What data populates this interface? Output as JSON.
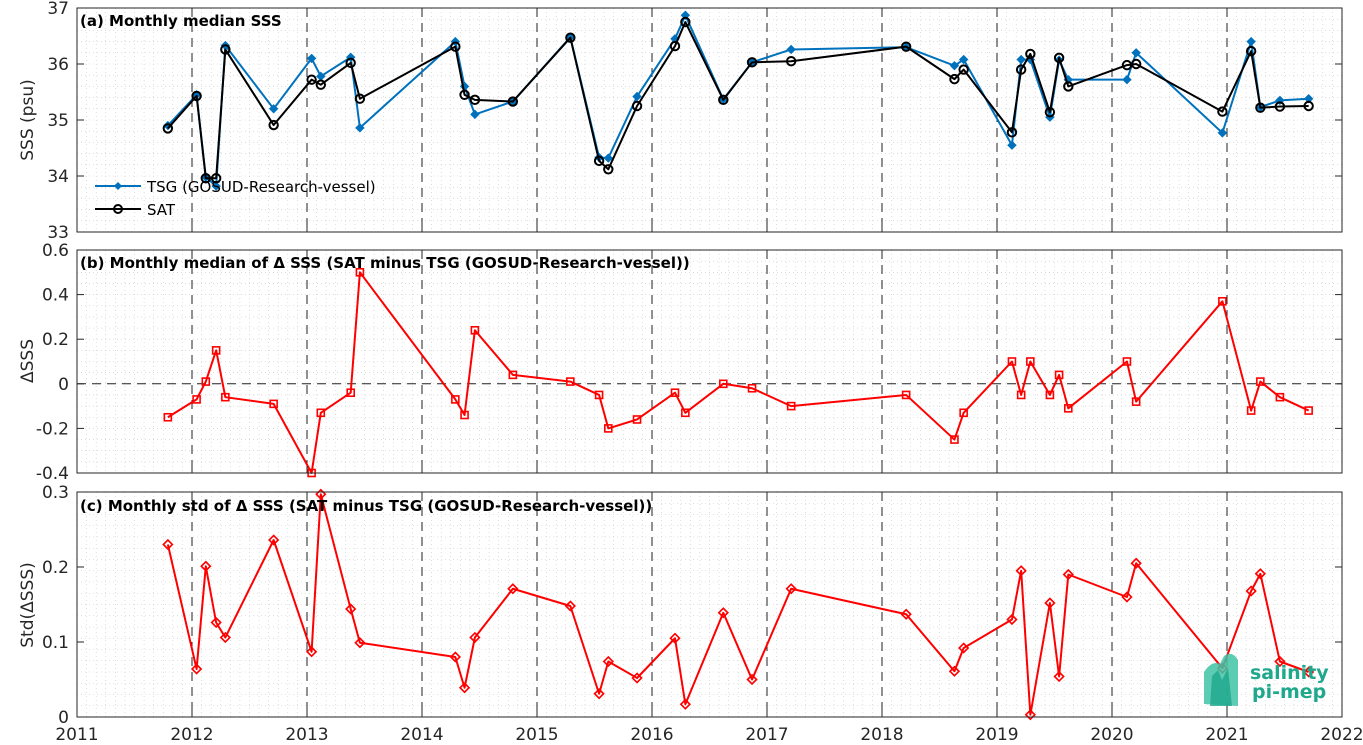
{
  "logo": {
    "line1": "salinity",
    "line2": "pi-mep",
    "colors": [
      "#1fa88c",
      "#3fc3a6",
      "#7fd9c0"
    ]
  },
  "xaxis": {
    "ticks": [
      "2011",
      "2012",
      "2013",
      "2014",
      "2015",
      "2016",
      "2017",
      "2018",
      "2019",
      "2020",
      "2021",
      "2022"
    ],
    "range": [
      2011,
      2022
    ],
    "grid": true
  },
  "chart_data": [
    {
      "type": "line",
      "title": "(a) Monthly median SSS",
      "ylabel": "SSS (psu)",
      "ylim": [
        33,
        37
      ],
      "yticks": [
        "33",
        "34",
        "35",
        "36",
        "37"
      ],
      "yticks_values": [
        33,
        34,
        35,
        36,
        37
      ],
      "legend": "bottom-left",
      "series": [
        {
          "name": "TSG (GOSUD-Research-vessel)",
          "color": "#0072bd",
          "marker": "diamond",
          "points": [
            [
              2011.79,
              34.9
            ],
            [
              2012.04,
              35.45
            ],
            [
              2012.12,
              33.98
            ],
            [
              2012.21,
              33.82
            ],
            [
              2012.29,
              36.33
            ],
            [
              2012.71,
              35.2
            ],
            [
              2013.04,
              36.1
            ],
            [
              2013.12,
              35.78
            ],
            [
              2013.38,
              36.12
            ],
            [
              2013.46,
              34.86
            ],
            [
              2014.29,
              36.4
            ],
            [
              2014.37,
              35.6
            ],
            [
              2014.46,
              35.1
            ],
            [
              2014.79,
              35.33
            ],
            [
              2015.29,
              36.48
            ],
            [
              2015.54,
              34.33
            ],
            [
              2015.62,
              34.32
            ],
            [
              2015.87,
              35.42
            ],
            [
              2016.2,
              36.45
            ],
            [
              2016.29,
              36.87
            ],
            [
              2016.62,
              35.37
            ],
            [
              2016.87,
              36.03
            ],
            [
              2017.21,
              36.26
            ],
            [
              2018.21,
              36.3
            ],
            [
              2018.63,
              35.97
            ],
            [
              2018.71,
              36.08
            ],
            [
              2019.13,
              34.55
            ],
            [
              2019.21,
              36.08
            ],
            [
              2019.29,
              36.08
            ],
            [
              2019.46,
              35.05
            ],
            [
              2019.54,
              36.07
            ],
            [
              2019.62,
              35.72
            ],
            [
              2020.13,
              35.72
            ],
            [
              2020.21,
              36.2
            ],
            [
              2020.96,
              34.77
            ],
            [
              2021.21,
              36.4
            ],
            [
              2021.29,
              35.23
            ],
            [
              2021.46,
              35.35
            ],
            [
              2021.71,
              35.38
            ]
          ]
        },
        {
          "name": "SAT",
          "color": "#000000",
          "marker": "circle",
          "points": [
            [
              2011.79,
              34.85
            ],
            [
              2012.04,
              35.43
            ],
            [
              2012.12,
              33.96
            ],
            [
              2012.21,
              33.96
            ],
            [
              2012.29,
              36.26
            ],
            [
              2012.71,
              34.91
            ],
            [
              2013.04,
              35.72
            ],
            [
              2013.12,
              35.63
            ],
            [
              2013.38,
              36.02
            ],
            [
              2013.46,
              35.38
            ],
            [
              2014.29,
              36.31
            ],
            [
              2014.37,
              35.45
            ],
            [
              2014.46,
              35.36
            ],
            [
              2014.79,
              35.33
            ],
            [
              2015.29,
              36.47
            ],
            [
              2015.54,
              34.27
            ],
            [
              2015.62,
              34.12
            ],
            [
              2015.87,
              35.25
            ],
            [
              2016.2,
              36.32
            ],
            [
              2016.29,
              36.75
            ],
            [
              2016.62,
              35.36
            ],
            [
              2016.87,
              36.03
            ],
            [
              2017.21,
              36.05
            ],
            [
              2018.21,
              36.31
            ],
            [
              2018.63,
              35.73
            ],
            [
              2018.71,
              35.9
            ],
            [
              2019.13,
              34.78
            ],
            [
              2019.21,
              35.9
            ],
            [
              2019.29,
              36.18
            ],
            [
              2019.46,
              35.14
            ],
            [
              2019.54,
              36.11
            ],
            [
              2019.62,
              35.6
            ],
            [
              2020.13,
              35.98
            ],
            [
              2020.21,
              36.0
            ],
            [
              2020.96,
              35.15
            ],
            [
              2021.21,
              36.23
            ],
            [
              2021.29,
              35.22
            ],
            [
              2021.46,
              35.24
            ],
            [
              2021.71,
              35.25
            ]
          ]
        }
      ]
    },
    {
      "type": "line",
      "title": "(b) Monthly median of Δ SSS (SAT minus TSG (GOSUD-Research-vessel))",
      "ylabel": "ΔSSS",
      "ylim": [
        -0.4,
        0.6
      ],
      "yticks": [
        "-0.4",
        "-0.2",
        "0",
        "0.2",
        "0.4",
        "0.6"
      ],
      "yticks_values": [
        -0.4,
        -0.2,
        0,
        0.2,
        0.4,
        0.6
      ],
      "zero_line": true,
      "series": [
        {
          "color": "#ff0000",
          "marker": "square",
          "points": [
            [
              2011.79,
              -0.15
            ],
            [
              2012.04,
              -0.07
            ],
            [
              2012.12,
              0.01
            ],
            [
              2012.21,
              0.15
            ],
            [
              2012.29,
              -0.06
            ],
            [
              2012.71,
              -0.09
            ],
            [
              2013.04,
              -0.4
            ],
            [
              2013.12,
              -0.13
            ],
            [
              2013.38,
              -0.04
            ],
            [
              2013.46,
              0.5
            ],
            [
              2014.29,
              -0.07
            ],
            [
              2014.37,
              -0.14
            ],
            [
              2014.46,
              0.24
            ],
            [
              2014.79,
              0.04
            ],
            [
              2015.29,
              0.01
            ],
            [
              2015.54,
              -0.05
            ],
            [
              2015.62,
              -0.2
            ],
            [
              2015.87,
              -0.16
            ],
            [
              2016.2,
              -0.04
            ],
            [
              2016.29,
              -0.13
            ],
            [
              2016.62,
              0.0
            ],
            [
              2016.87,
              -0.02
            ],
            [
              2017.21,
              -0.1
            ],
            [
              2018.21,
              -0.05
            ],
            [
              2018.63,
              -0.25
            ],
            [
              2018.71,
              -0.13
            ],
            [
              2019.13,
              0.1
            ],
            [
              2019.21,
              -0.05
            ],
            [
              2019.29,
              0.1
            ],
            [
              2019.46,
              -0.05
            ],
            [
              2019.54,
              0.04
            ],
            [
              2019.62,
              -0.11
            ],
            [
              2020.13,
              0.1
            ],
            [
              2020.21,
              -0.08
            ],
            [
              2020.96,
              0.37
            ],
            [
              2021.21,
              -0.12
            ],
            [
              2021.29,
              0.01
            ],
            [
              2021.46,
              -0.06
            ],
            [
              2021.71,
              -0.12
            ]
          ]
        }
      ]
    },
    {
      "type": "line",
      "title": "(c) Monthly std of Δ SSS (SAT minus TSG (GOSUD-Research-vessel))",
      "ylabel": "Std(ΔSSS)",
      "ylim": [
        0,
        0.3
      ],
      "yticks": [
        "0",
        "0.1",
        "0.2",
        "0.3"
      ],
      "yticks_values": [
        0,
        0.1,
        0.2,
        0.3
      ],
      "series": [
        {
          "color": "#ff0000",
          "marker": "diamond",
          "points": [
            [
              2011.79,
              0.23
            ],
            [
              2012.04,
              0.064
            ],
            [
              2012.12,
              0.201
            ],
            [
              2012.21,
              0.126
            ],
            [
              2012.29,
              0.106
            ],
            [
              2012.71,
              0.236
            ],
            [
              2013.04,
              0.087
            ],
            [
              2013.12,
              0.297
            ],
            [
              2013.38,
              0.144
            ],
            [
              2013.46,
              0.099
            ],
            [
              2014.29,
              0.08
            ],
            [
              2014.37,
              0.039
            ],
            [
              2014.46,
              0.106
            ],
            [
              2014.79,
              0.171
            ],
            [
              2015.29,
              0.148
            ],
            [
              2015.54,
              0.031
            ],
            [
              2015.62,
              0.074
            ],
            [
              2015.87,
              0.052
            ],
            [
              2016.2,
              0.105
            ],
            [
              2016.29,
              0.017
            ],
            [
              2016.62,
              0.139
            ],
            [
              2016.87,
              0.05
            ],
            [
              2017.21,
              0.171
            ],
            [
              2018.21,
              0.137
            ],
            [
              2018.63,
              0.061
            ],
            [
              2018.71,
              0.092
            ],
            [
              2019.13,
              0.13
            ],
            [
              2019.21,
              0.195
            ],
            [
              2019.29,
              0.003
            ],
            [
              2019.46,
              0.152
            ],
            [
              2019.54,
              0.054
            ],
            [
              2019.62,
              0.19
            ],
            [
              2020.13,
              0.16
            ],
            [
              2020.21,
              0.205
            ],
            [
              2020.96,
              0.065
            ],
            [
              2021.21,
              0.168
            ],
            [
              2021.29,
              0.191
            ],
            [
              2021.46,
              0.074
            ],
            [
              2021.71,
              0.06
            ]
          ]
        }
      ]
    }
  ]
}
